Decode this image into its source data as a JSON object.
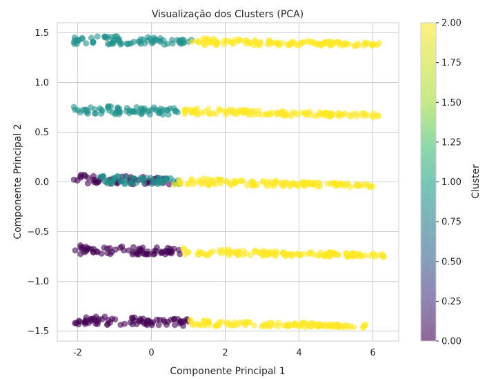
{
  "chart_data": {
    "type": "scatter",
    "title": "Visualização dos Clusters (PCA)",
    "xlabel": "Componente Principal 1",
    "ylabel": "Componente Principal 2",
    "xlim": [
      -2.55,
      6.7
    ],
    "ylim": [
      -1.6,
      1.6
    ],
    "xticks": [
      -2,
      0,
      2,
      4,
      6
    ],
    "yticks": [
      -1.5,
      -1.0,
      -0.5,
      0.0,
      0.5,
      1.0,
      1.5
    ],
    "grid": true,
    "colorbar": {
      "label": "Cluster",
      "range": [
        0,
        2
      ],
      "ticks": [
        "0.00",
        "0.25",
        "0.50",
        "0.75",
        "1.00",
        "1.25",
        "1.50",
        "1.75",
        "2.00"
      ],
      "colormap": "viridis",
      "alpha": 0.6
    },
    "colors": {
      "0": "#440154",
      "1": "#21918c",
      "2": "#fde725"
    },
    "bands": [
      {
        "y": 1.43,
        "y_end": 1.38,
        "x_min": -2.1,
        "x_max": 6.2,
        "segments": [
          {
            "cluster": 1,
            "from": -2.1,
            "to": 1.1
          },
          {
            "cluster": 2,
            "from": 1.1,
            "to": 6.2
          }
        ]
      },
      {
        "y": 0.73,
        "y_end": 0.67,
        "x_min": -2.1,
        "x_max": 6.15,
        "segments": [
          {
            "cluster": 1,
            "from": -2.1,
            "to": 0.9
          },
          {
            "cluster": 2,
            "from": 0.9,
            "to": 6.15
          }
        ]
      },
      {
        "y": 0.03,
        "y_end": -0.04,
        "x_min": -2.1,
        "x_max": 6.0,
        "segments": [
          {
            "cluster": 0,
            "from": -2.1,
            "to": 0.5
          },
          {
            "cluster": 1,
            "from": -1.4,
            "to": 0.85
          },
          {
            "cluster": 2,
            "from": 0.6,
            "to": 6.0
          }
        ]
      },
      {
        "y": -0.68,
        "y_end": -0.74,
        "x_min": -2.1,
        "x_max": 6.3,
        "segments": [
          {
            "cluster": 0,
            "from": -2.1,
            "to": 0.8
          },
          {
            "cluster": 2,
            "from": 0.8,
            "to": 6.3
          }
        ]
      },
      {
        "y": -1.39,
        "y_end": -1.45,
        "x_min": -2.1,
        "x_max": 5.8,
        "segments": [
          {
            "cluster": 0,
            "from": -2.1,
            "to": 1.0
          },
          {
            "cluster": 2,
            "from": 1.0,
            "to": 5.8
          }
        ]
      }
    ]
  }
}
